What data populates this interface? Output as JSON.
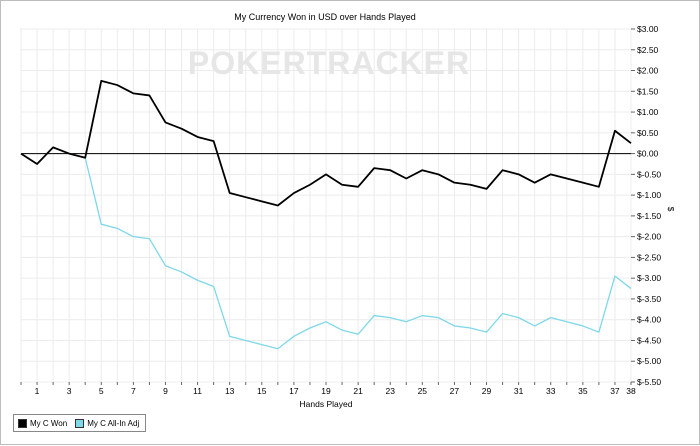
{
  "chart_data": {
    "type": "line",
    "title": "My Currency Won in USD over Hands Played",
    "xlabel": "Hands Played",
    "ylabel": "$",
    "watermark": "POKERTRACKER",
    "x": [
      0,
      1,
      2,
      3,
      4,
      5,
      6,
      7,
      8,
      9,
      10,
      11,
      12,
      13,
      14,
      15,
      16,
      17,
      18,
      19,
      20,
      21,
      22,
      23,
      24,
      25,
      26,
      27,
      28,
      29,
      30,
      31,
      32,
      33,
      34,
      35,
      36,
      37,
      38
    ],
    "xlim": [
      0,
      38
    ],
    "x_ticks": [
      1,
      3,
      5,
      7,
      9,
      11,
      13,
      15,
      17,
      19,
      21,
      23,
      25,
      27,
      29,
      31,
      33,
      35,
      37,
      38
    ],
    "ylim": [
      -5.5,
      3.0
    ],
    "y_ticks": [
      3.0,
      2.5,
      2.0,
      1.5,
      1.0,
      0.5,
      0.0,
      -0.5,
      -1.0,
      -1.5,
      -2.0,
      -2.5,
      -3.0,
      -3.5,
      -4.0,
      -4.5,
      -5.0,
      -5.5
    ],
    "y_tick_labels": [
      "$3.00",
      "$2.50",
      "$2.00",
      "$1.50",
      "$1.00",
      "$0.50",
      "$0.00",
      "$-0.50",
      "$-1.00",
      "$-1.50",
      "$-2.00",
      "$-2.50",
      "$-3.00",
      "$-3.50",
      "$-4.00",
      "$-4.50",
      "$-5.00",
      "$-5.50"
    ],
    "zero_line": true,
    "grid": true,
    "legend_position": "bottom-left",
    "series": [
      {
        "name": "My C Won",
        "color": "#000000",
        "values": [
          0.0,
          -0.25,
          0.15,
          0.0,
          -0.1,
          1.75,
          1.65,
          1.45,
          1.4,
          0.75,
          0.6,
          0.4,
          0.3,
          -0.95,
          -1.05,
          -1.15,
          -1.25,
          -0.95,
          -0.75,
          -0.5,
          -0.75,
          -0.8,
          -0.35,
          -0.4,
          -0.6,
          -0.4,
          -0.5,
          -0.7,
          -0.75,
          -0.85,
          -0.4,
          -0.5,
          -0.7,
          -0.5,
          -0.6,
          -0.7,
          -0.8,
          0.55,
          0.25
        ]
      },
      {
        "name": "My C All-In Adj",
        "color": "#7fd8e8",
        "values": [
          0.0,
          -0.25,
          0.15,
          0.0,
          -0.1,
          -1.7,
          -1.8,
          -2.0,
          -2.05,
          -2.7,
          -2.85,
          -3.05,
          -3.2,
          -4.4,
          -4.5,
          -4.6,
          -4.7,
          -4.4,
          -4.2,
          -4.05,
          -4.25,
          -4.35,
          -3.9,
          -3.95,
          -4.05,
          -3.9,
          -3.95,
          -4.15,
          -4.2,
          -4.3,
          -3.85,
          -3.95,
          -4.15,
          -3.95,
          -4.05,
          -4.15,
          -4.3,
          -2.95,
          -3.25
        ]
      }
    ]
  }
}
